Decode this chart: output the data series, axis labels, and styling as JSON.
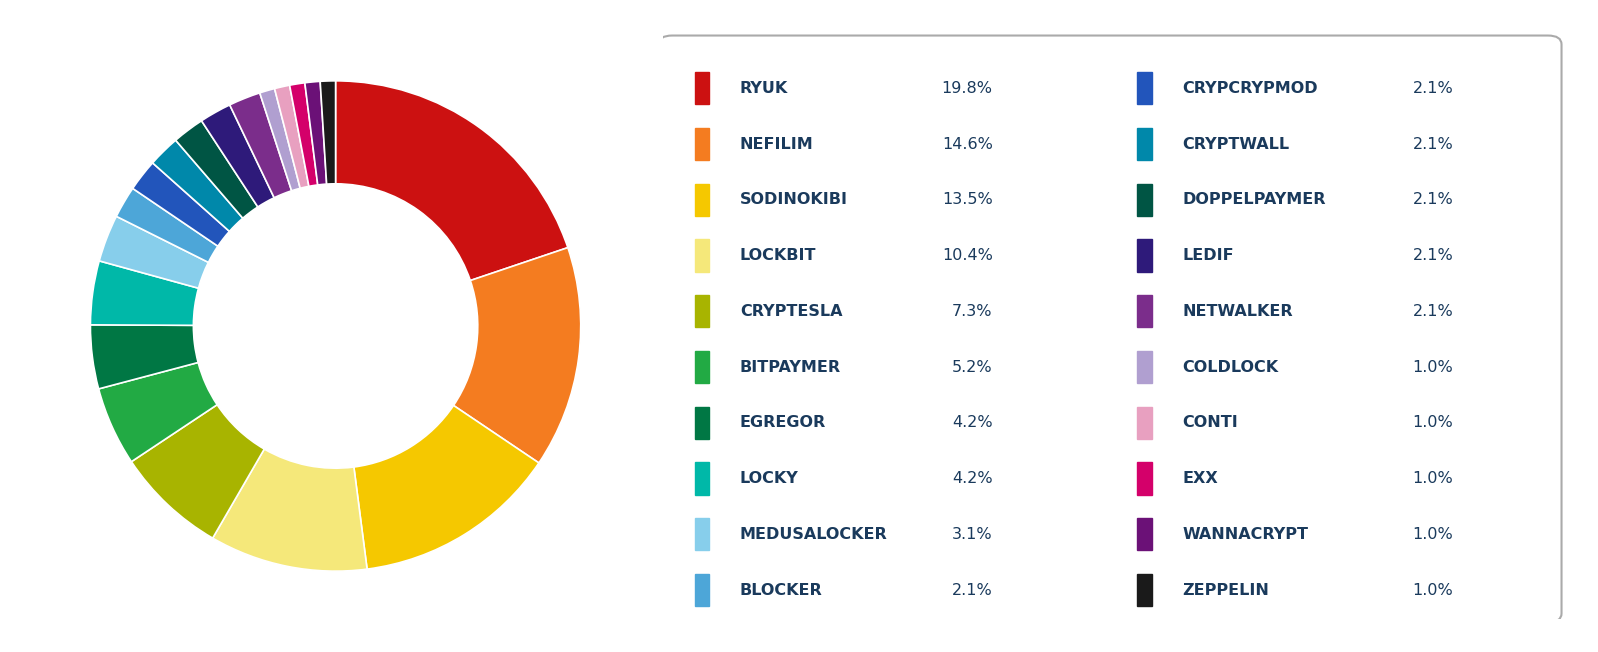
{
  "labels": [
    "RYUK",
    "NEFILIM",
    "SODINOKIBI",
    "LOCKBIT",
    "CRYPTESLA",
    "BITPAYMER",
    "EGREGOR",
    "LOCKY",
    "MEDUSALOCKER",
    "BLOCKER",
    "CRYPCRYPMOD",
    "CRYPTWALL",
    "DOPPELPAYMER",
    "LEDIF",
    "NETWALKER",
    "COLDLOCK",
    "CONTI",
    "EXX",
    "WANNACRYPT",
    "ZEPPELIN"
  ],
  "values": [
    19.8,
    14.6,
    13.5,
    10.4,
    7.3,
    5.2,
    4.2,
    4.2,
    3.1,
    2.1,
    2.1,
    2.1,
    2.1,
    2.1,
    2.1,
    1.0,
    1.0,
    1.0,
    1.0,
    1.0
  ],
  "colors": [
    "#cc1111",
    "#f47c20",
    "#f5c800",
    "#f5e87a",
    "#a8b400",
    "#22aa44",
    "#007744",
    "#00b8a8",
    "#87ceeb",
    "#4da6d8",
    "#2255bb",
    "#0088aa",
    "#005544",
    "#2e1a7a",
    "#7b2d8b",
    "#b09fd0",
    "#e8a0c0",
    "#d4006a",
    "#6b1177",
    "#1a1a1a"
  ],
  "legend_left": [
    {
      "name": "RYUK",
      "pct": "19.8%",
      "color": "#cc1111"
    },
    {
      "name": "NEFILIM",
      "pct": "14.6%",
      "color": "#f47c20"
    },
    {
      "name": "SODINOKIBI",
      "pct": "13.5%",
      "color": "#f5c800"
    },
    {
      "name": "LOCKBIT",
      "pct": "10.4%",
      "color": "#f5e87a"
    },
    {
      "name": "CRYPTESLA",
      "pct": "7.3%",
      "color": "#a8b400"
    },
    {
      "name": "BITPAYMER",
      "pct": "5.2%",
      "color": "#22aa44"
    },
    {
      "name": "EGREGOR",
      "pct": "4.2%",
      "color": "#007744"
    },
    {
      "name": "LOCKY",
      "pct": "4.2%",
      "color": "#00b8a8"
    },
    {
      "name": "MEDUSALOCKER",
      "pct": "3.1%",
      "color": "#87ceeb"
    },
    {
      "name": "BLOCKER",
      "pct": "2.1%",
      "color": "#4da6d8"
    }
  ],
  "legend_right": [
    {
      "name": "CRYPCRYPMOD",
      "pct": "2.1%",
      "color": "#2255bb"
    },
    {
      "name": "CRYPTWALL",
      "pct": "2.1%",
      "color": "#0088aa"
    },
    {
      "name": "DOPPELPAYMER",
      "pct": "2.1%",
      "color": "#005544"
    },
    {
      "name": "LEDIF",
      "pct": "2.1%",
      "color": "#2e1a7a"
    },
    {
      "name": "NETWALKER",
      "pct": "2.1%",
      "color": "#7b2d8b"
    },
    {
      "name": "COLDLOCK",
      "pct": "1.0%",
      "color": "#b09fd0"
    },
    {
      "name": "CONTI",
      "pct": "1.0%",
      "color": "#e8a0c0"
    },
    {
      "name": "EXX",
      "pct": "1.0%",
      "color": "#d4006a"
    },
    {
      "name": "WANNACRYPT",
      "pct": "1.0%",
      "color": "#6b1177"
    },
    {
      "name": "ZEPPELIN",
      "pct": "1.0%",
      "color": "#1a1a1a"
    }
  ],
  "bg_color": "#ffffff",
  "text_color": "#1a3a5c",
  "box_edgecolor": "#aaaaaa"
}
